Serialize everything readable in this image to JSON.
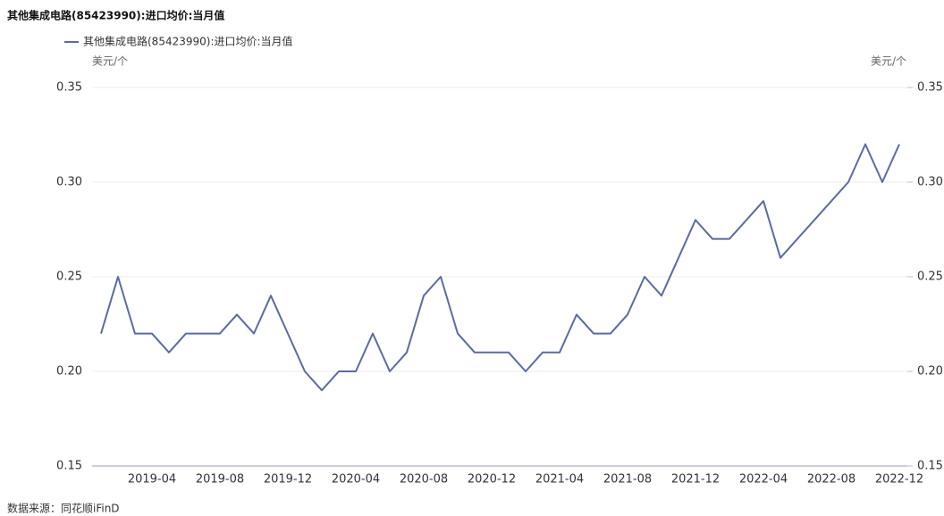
{
  "chart_data": {
    "type": "line",
    "title": "其他集成电路(85423990):进口均价:当月值",
    "y_unit": "美元/个",
    "y2_unit": "美元/个",
    "source": "数据来源：同花顺iFinD",
    "categories": [
      null,
      null,
      null,
      "2019-04",
      null,
      null,
      null,
      "2019-08",
      null,
      null,
      null,
      "2019-12",
      null,
      null,
      null,
      "2020-04",
      null,
      null,
      null,
      "2020-08",
      null,
      null,
      null,
      "2020-12",
      null,
      null,
      null,
      "2021-04",
      null,
      null,
      null,
      "2021-08",
      null,
      null,
      null,
      "2021-12",
      null,
      null,
      null,
      "2022-04",
      null,
      null,
      null,
      "2022-08",
      null,
      null,
      null,
      "2022-12"
    ],
    "series": [
      {
        "name": "其他集成电路(85423990):进口均价:当月值",
        "color": "#5b6aa3",
        "values": [
          0.22,
          0.25,
          0.22,
          0.22,
          0.21,
          0.22,
          0.22,
          0.22,
          0.23,
          0.22,
          0.24,
          0.22,
          0.2,
          0.19,
          0.2,
          0.2,
          0.22,
          0.2,
          0.21,
          0.24,
          0.25,
          0.22,
          0.21,
          0.21,
          0.21,
          0.2,
          0.21,
          0.21,
          0.23,
          0.22,
          0.22,
          0.23,
          0.25,
          0.24,
          0.26,
          0.28,
          0.27,
          0.27,
          0.28,
          0.29,
          0.26,
          0.27,
          0.28,
          0.29,
          0.3,
          0.32,
          0.3,
          0.32
        ]
      }
    ],
    "ylim": [
      0.15,
      0.35
    ],
    "yticks": [
      0.15,
      {
        "value": 0.2,
        "label": "0.20"
      },
      0.25,
      {
        "value": 0.3,
        "label": "0.30"
      },
      0.35
    ],
    "y2lim": [
      0.15,
      0.35
    ],
    "y2ticks": [
      0.15,
      {
        "value": 0.2,
        "label": "0.20"
      },
      0.25,
      {
        "value": 0.3,
        "label": "0.30"
      },
      0.35
    ],
    "grid": true
  }
}
